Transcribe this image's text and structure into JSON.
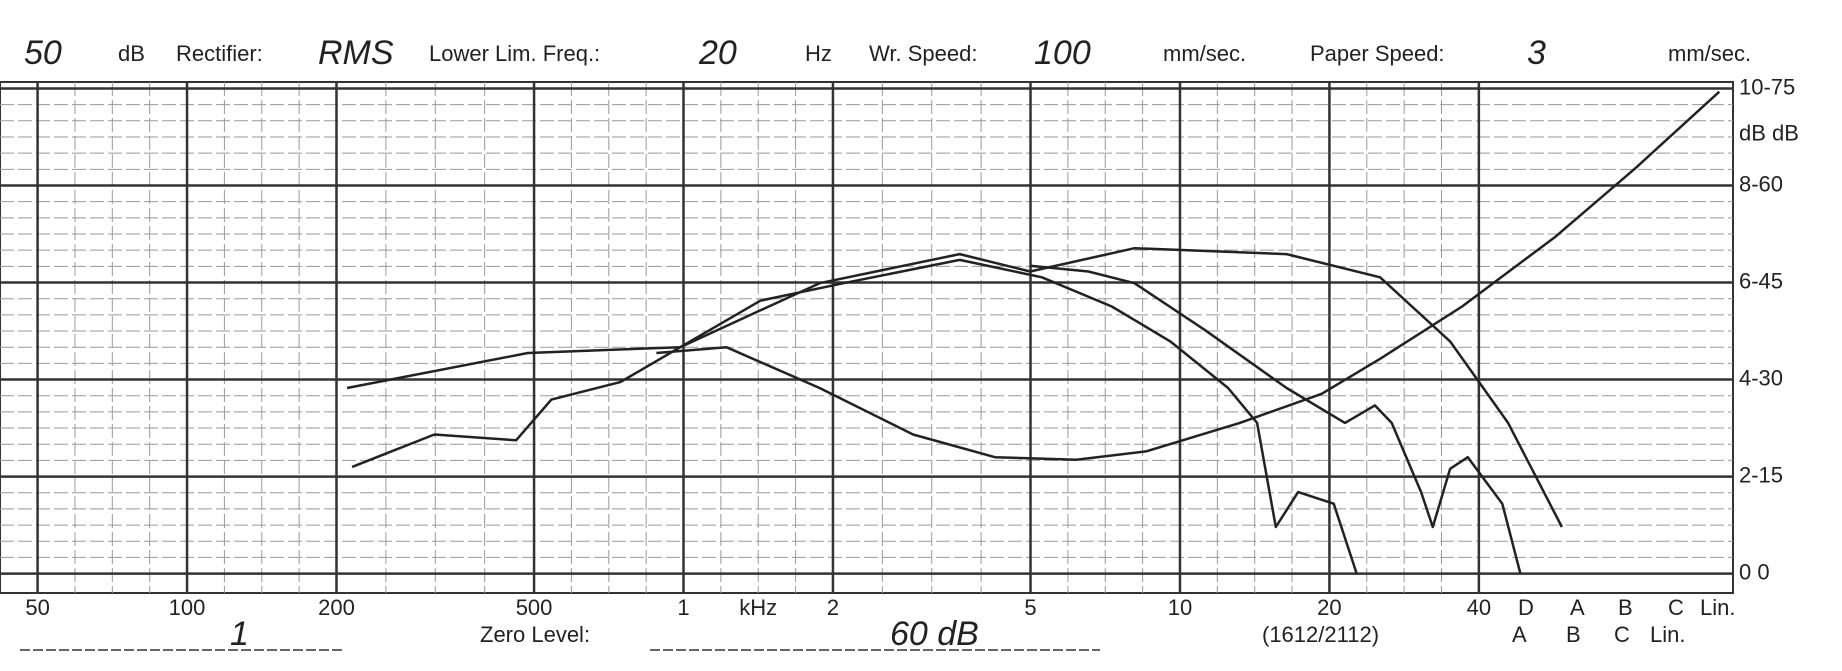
{
  "chart_data": {
    "type": "line",
    "header": [
      "50",
      "dB",
      "Rectifier:",
      "RMS",
      "Lower Lim. Freq.:",
      "20",
      "Hz",
      "Wr. Speed:",
      "100",
      "mm/sec.",
      "Paper Speed:",
      "3",
      "mm/sec."
    ],
    "footer": [
      "1",
      "Zero Level:",
      "60 dB",
      "(1612/2112)",
      "A",
      "B",
      "C",
      "Lin."
    ],
    "x_unit": "kHz",
    "scale_row": [
      "D",
      "A",
      "B",
      "C",
      "Lin."
    ],
    "y2_header": "dB dB",
    "xscale": "log",
    "xlim": [
      42,
      130000
    ],
    "xticks": [
      50,
      100,
      200,
      500,
      {
        "value": 1000,
        "label": "1"
      },
      {
        "value": 2000,
        "label": "2"
      },
      {
        "value": 5000,
        "label": "5"
      },
      {
        "value": 10000,
        "label": "10"
      },
      {
        "value": 20000,
        "label": "20"
      },
      {
        "value": 40000,
        "label": "40"
      }
    ],
    "ylim": [
      -3,
      76
    ],
    "yticks": [
      {
        "value": 0,
        "label": "0 0"
      },
      {
        "value": 15,
        "label": "2-15"
      },
      {
        "value": 30,
        "label": "4-30"
      },
      {
        "value": 45,
        "label": "6-45"
      },
      {
        "value": 60,
        "label": "8-60"
      },
      {
        "value": 75,
        "label": "10-75"
      }
    ],
    "grid": true,
    "series": [
      {
        "color": "#222222",
        "x": [
          210,
          486,
          985,
          1880,
          3600,
          4990,
          8100,
          16400,
          25300,
          35000,
          45800,
          58800
        ],
        "values": [
          28.7,
          34.1,
          35,
          44.9,
          49.4,
          46.7,
          50.3,
          49.4,
          45.8,
          35.9,
          23.3,
          7.2
        ]
      },
      {
        "color": "#222222",
        "x": [
          215,
          315,
          460,
          542,
          746,
          985,
          1430,
          2100,
          3600,
          5270,
          7290,
          9560,
          12500,
          14300,
          15600,
          17300,
          20400,
          22700
        ],
        "values": [
          16.5,
          21.5,
          20.6,
          26.9,
          29.6,
          35,
          42.2,
          44.9,
          48.5,
          45.8,
          41.3,
          35.9,
          28.7,
          23.3,
          7.2,
          12.6,
          10.8,
          0
        ]
      },
      {
        "color": "#222222",
        "x": [
          882,
          1220,
          1880,
          2900,
          4240,
          6180,
          8560,
          13200,
          19300,
          25300,
          37000,
          57100,
          83000,
          122000
        ],
        "values": [
          34.1,
          35,
          28.7,
          21.5,
          18,
          17.6,
          18.9,
          23.3,
          27.8,
          33.2,
          41.3,
          52.1,
          62.8,
          74.5
        ]
      },
      {
        "color": "#222222",
        "x": [
          4990,
          6540,
          8100,
          11200,
          16400,
          21500,
          24700,
          26700,
          30600,
          32300,
          35000,
          38000,
          44600,
          48500
        ],
        "values": [
          47.6,
          46.7,
          44.9,
          37.7,
          28.7,
          23.3,
          26,
          23.3,
          12.6,
          7.2,
          16.2,
          18,
          10.8,
          0
        ]
      }
    ]
  }
}
